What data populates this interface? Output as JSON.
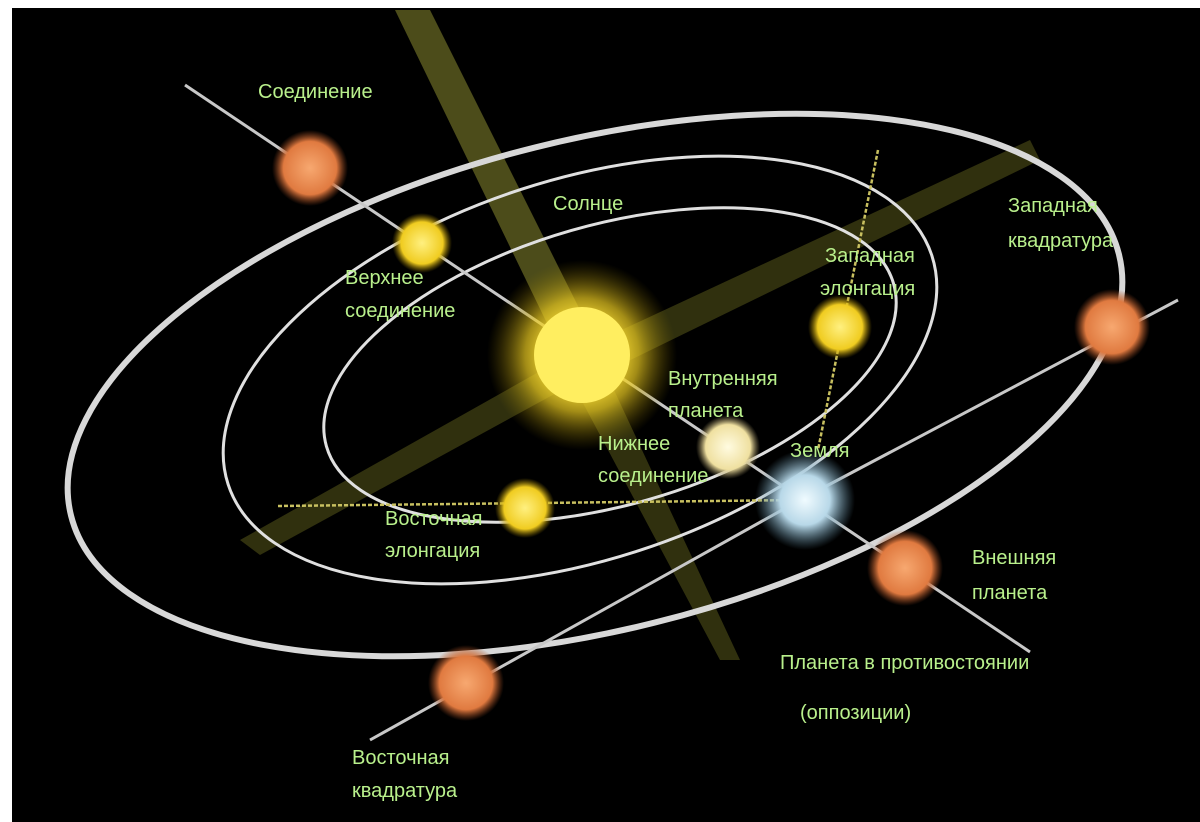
{
  "labels": [
    {
      "lines": [
        "Соединение"
      ]
    },
    {
      "lines": [
        "Солнце"
      ]
    },
    {
      "lines": [
        "Верхнее",
        "соединение"
      ]
    },
    {
      "lines": [
        "Западная",
        "элонгация"
      ]
    },
    {
      "lines": [
        "Западная",
        "квадратура"
      ]
    },
    {
      "lines": [
        "Внутренняя",
        "планета"
      ]
    },
    {
      "lines": [
        "Нижнее",
        "соединение"
      ]
    },
    {
      "lines": [
        "Земля"
      ]
    },
    {
      "lines": [
        "Восточная",
        "элонгация"
      ]
    },
    {
      "lines": [
        "Внешняя",
        "планета"
      ]
    },
    {
      "lines": [
        "Планета в противостоянии"
      ]
    },
    {
      "lines": [
        "(оппозиции)"
      ]
    },
    {
      "lines": [
        "Восточная",
        "квадратура"
      ]
    }
  ]
}
